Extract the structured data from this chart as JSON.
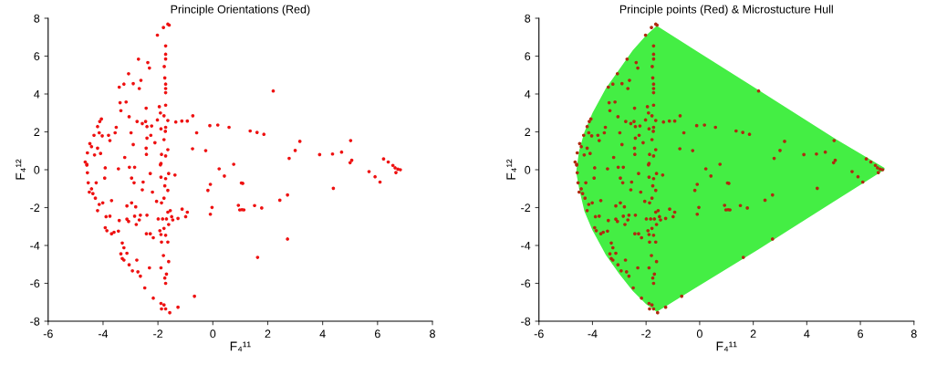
{
  "chart_data": [
    {
      "type": "scatter",
      "title": "Principle Orientations (Red)",
      "xlabel": "F₄¹¹",
      "ylabel": "F₄¹²",
      "xlim": [
        -6,
        8
      ],
      "ylim": [
        -8,
        8
      ],
      "xticks": [
        -6,
        -4,
        -2,
        0,
        2,
        4,
        6,
        8
      ],
      "yticks": [
        -8,
        -6,
        -4,
        -2,
        0,
        2,
        4,
        6,
        8
      ],
      "grid": false,
      "marker": "circle",
      "series": [
        {
          "color": "#ee1111",
          "x": [
            -1.64,
            -1.8,
            -2.02,
            -1.59,
            -1.72,
            -1.72,
            -1.72,
            -1.77,
            -2.71,
            -2.37,
            -2.31,
            -3.07,
            -2.9,
            -3.24,
            -2.62,
            -2.68,
            -3.41,
            -1.75,
            -1.72,
            -1.72,
            -1.72,
            -3.16,
            -3.38,
            -3.35,
            -2.43,
            -1.95,
            -1.72,
            -1.91,
            -3.05,
            -2.76,
            -2.45,
            -2.4,
            -2.57,
            -2.23,
            -2.02,
            -1.78,
            -1.64,
            -1.35,
            -1.13,
            -0.93,
            -0.73,
            -0.11,
            0.18,
            0.59,
            -1.89,
            -1.72,
            -1.73,
            -0.59,
            -0.26,
            -0.74,
            -2.4,
            -2.26,
            -2.11,
            -1.78,
            -2.43,
            -2.42,
            -2.9,
            -2.98,
            -4.12,
            -4.06,
            -4.2,
            -4.14,
            -4.33,
            -4.48,
            -4.42,
            -4.57,
            -4.65,
            -4.59,
            -4.03,
            -3.75,
            -3.8,
            -3.56,
            -3.52,
            -4.09,
            -4.31,
            -4.2,
            -3.21,
            -1.89,
            -1.87,
            -1.72,
            -1.64,
            -4.59,
            -4.57,
            -3.92,
            -3.94,
            -3.44,
            -3.04,
            -2.85,
            -2.96,
            -2.87,
            -2.54,
            -2.57,
            -2.28,
            -2.2,
            -1.91,
            -1.89,
            -1.72,
            -1.61,
            -1.38,
            -1.75,
            -1.64,
            -1.78,
            -2.05,
            -1.87,
            -4.54,
            -4.42,
            -4.37,
            -4.28,
            -4.14,
            -4.2,
            -4.01,
            -4.25,
            -4.5,
            -3.69,
            -3.89,
            -3.75,
            -3.92,
            -3.86,
            -3.69,
            -3.6,
            -3.44,
            -3.41,
            -3.13,
            -3.07,
            -3.13,
            -2.96,
            -2.81,
            -2.85,
            -2.79,
            -2.68,
            -2.64,
            -2.4,
            -2.42,
            -2.17,
            -2.28,
            -1.99,
            -1.83,
            -1.69,
            -1.93,
            -1.78,
            -1.72,
            -1.89,
            -1.87,
            -1.64,
            -1.64,
            -1.55,
            -1.5,
            -1.27,
            -1.12,
            -0.99,
            -0.93,
            -1.61,
            -1.46,
            -3.3,
            -3.24,
            -3.35,
            -3.3,
            -3.24,
            -3.13,
            -3.05,
            -2.93,
            -2.77,
            -2.73,
            -2.64,
            -2.48,
            -2.31,
            -1.89,
            -1.8,
            -1.61,
            -1.69,
            -1.75,
            -1.72,
            -2.17,
            -1.89,
            -1.78,
            -1.72,
            -1.87,
            -1.57,
            -1.27,
            -0.67,
            -0.09,
            -0.18,
            -0.03,
            -0.09,
            0.23,
            0.42,
            0.76,
            1.09,
            0.93,
            0.98,
            1.13,
            2.2,
            1.36,
            1.61,
            1.86,
            3.17,
            3.0,
            2.78,
            3.89,
            4.36,
            4.69,
            5.02,
            5.06,
            5.0,
            4.39,
            5.69,
            5.91,
            6.09,
            6.22,
            6.39,
            6.56,
            6.67,
            6.74,
            6.83,
            6.64,
            1.04,
            1.06,
            1.52,
            1.78,
            2.44,
            2.72,
            2.72,
            1.63
          ],
          "values": [
            7.69,
            7.51,
            7.11,
            7.64,
            6.54,
            6.1,
            5.85,
            5.45,
            5.84,
            5.66,
            5.37,
            5.07,
            4.55,
            4.52,
            4.72,
            4.29,
            4.36,
            4.85,
            4.52,
            4.29,
            4.07,
            3.58,
            3.54,
            3.12,
            3.25,
            3.33,
            3.41,
            3.0,
            2.8,
            2.55,
            2.55,
            2.28,
            2.44,
            2.31,
            2.63,
            2.85,
            2.6,
            2.52,
            2.57,
            2.57,
            2.85,
            2.33,
            2.36,
            2.24,
            2.16,
            2.24,
            2.03,
            1.95,
            1.01,
            1.11,
            1.67,
            1.82,
            1.43,
            1.59,
            1.14,
            0.81,
            1.33,
            1.95,
            2.55,
            2.68,
            2.28,
            1.95,
            1.82,
            1.38,
            1.22,
            0.89,
            0.41,
            0.24,
            1.79,
            1.54,
            1.82,
            1.95,
            2.24,
            0.86,
            0.78,
            1.14,
            0.65,
            0.33,
            0.81,
            0.73,
            1.06,
            0.29,
            -0.16,
            0.1,
            -0.44,
            0.05,
            0.13,
            0.13,
            -0.44,
            -0.69,
            -0.65,
            -1.06,
            -0.2,
            -1.18,
            0.26,
            -0.39,
            -0.47,
            -0.2,
            -0.28,
            -0.85,
            -1.09,
            -1.5,
            -1.67,
            -1.75,
            -0.69,
            -1.01,
            -1.26,
            -1.5,
            -1.83,
            -2.16,
            -1.75,
            -0.69,
            -1.18,
            -1.63,
            -2.48,
            -2.45,
            -3.06,
            -3.22,
            -3.38,
            -3.3,
            -3.24,
            -2.68,
            -2.61,
            -2.73,
            -1.91,
            -1.75,
            -1.96,
            -2.45,
            -2.89,
            -2.65,
            -2.4,
            -2.4,
            -3.38,
            -3.59,
            -3.38,
            -2.6,
            -2.6,
            -2.6,
            -3.22,
            -3.1,
            -3.46,
            -3.42,
            -3.82,
            -3.82,
            -2.24,
            -2.16,
            -2.48,
            -2.57,
            -2.08,
            -2.48,
            -2.24,
            -2.89,
            -2.65,
            -3.87,
            -4.12,
            -4.44,
            -4.69,
            -4.77,
            -4.41,
            -5.02,
            -5.34,
            -4.77,
            -5.39,
            -5.62,
            -6.24,
            -5.18,
            -5.18,
            -4.53,
            -4.85,
            -5.51,
            -5.72,
            -6.0,
            -6.78,
            -7.06,
            -7.14,
            -7.35,
            -7.35,
            -7.55,
            -7.26,
            -6.68,
            -0.77,
            -1.09,
            -1.99,
            -2.35,
            0.05,
            -0.33,
            0.29,
            -0.72,
            -1.88,
            -2.12,
            -2.12,
            4.16,
            2.05,
            1.97,
            1.87,
            1.5,
            1.02,
            0.6,
            0.8,
            0.83,
            0.93,
            1.54,
            0.5,
            0.37,
            -0.98,
            -0.1,
            -0.37,
            -0.65,
            0.57,
            0.41,
            0.23,
            -0.15,
            0.03,
            0.0,
            0.1,
            -0.7,
            -2.11,
            -1.89,
            -2.02,
            -1.61,
            -1.33,
            -3.66,
            -4.63
          ]
        }
      ]
    },
    {
      "type": "scatter",
      "title": "Principle points (Red) & Microstucture Hull",
      "xlabel": "F₄¹¹",
      "ylabel": "F₄¹²",
      "xlim": [
        -6,
        8
      ],
      "ylim": [
        -8,
        8
      ],
      "xticks": [
        -6,
        -4,
        -2,
        0,
        2,
        4,
        6,
        8
      ],
      "yticks": [
        -8,
        -6,
        -4,
        -2,
        0,
        2,
        4,
        6,
        8
      ],
      "grid": false,
      "series": [
        {
          "type": "area",
          "color": "#44ee44",
          "x": [
            -4.6,
            -4.5,
            -4.3,
            -4.0,
            -3.5,
            -3.0,
            -2.5,
            -2.0,
            -1.6,
            2.2,
            5.1,
            6.9
          ],
          "values": [
            0.0,
            1.0,
            2.0,
            3.0,
            4.3,
            5.3,
            6.3,
            7.1,
            7.6,
            4.2,
            1.6,
            0.1
          ]
        },
        {
          "type": "area",
          "color": "#44ee44",
          "x": [
            -4.6,
            -4.5,
            -4.3,
            -4.0,
            -3.5,
            -3.0,
            -2.5,
            -2.0,
            -1.6,
            2.2,
            5.1,
            6.9
          ],
          "values": [
            -0.2,
            -1.0,
            -2.2,
            -3.2,
            -4.5,
            -5.5,
            -6.4,
            -7.1,
            -7.5,
            -4.2,
            -1.6,
            0.0
          ]
        },
        {
          "marker": "circle",
          "color": "#b02a10",
          "x": [
            -1.64,
            -1.8,
            -2.02,
            -1.59,
            -1.72,
            -1.72,
            -1.72,
            -1.77,
            -2.71,
            -2.37,
            -2.31,
            -3.07,
            -2.9,
            -3.24,
            -2.62,
            -2.68,
            -3.41,
            -1.75,
            -1.72,
            -1.72,
            -1.72,
            -3.16,
            -3.38,
            -3.35,
            -2.43,
            -1.95,
            -1.72,
            -1.91,
            -3.05,
            -2.76,
            -2.45,
            -2.4,
            -2.57,
            -2.23,
            -2.02,
            -1.78,
            -1.64,
            -1.35,
            -1.13,
            -0.93,
            -0.73,
            -0.11,
            0.18,
            0.59,
            -1.89,
            -1.72,
            -1.73,
            -0.59,
            -0.26,
            -0.74,
            -2.4,
            -2.26,
            -2.11,
            -1.78,
            -2.43,
            -2.42,
            -2.9,
            -2.98,
            -4.12,
            -4.06,
            -4.2,
            -4.14,
            -4.33,
            -4.48,
            -4.42,
            -4.57,
            -4.65,
            -4.59,
            -4.03,
            -3.75,
            -3.8,
            -3.56,
            -3.52,
            -4.09,
            -4.31,
            -4.2,
            -3.21,
            -1.89,
            -1.87,
            -1.72,
            -1.64,
            -4.59,
            -4.57,
            -3.92,
            -3.94,
            -3.44,
            -3.04,
            -2.85,
            -2.96,
            -2.87,
            -2.54,
            -2.57,
            -2.28,
            -2.2,
            -1.91,
            -1.89,
            -1.72,
            -1.61,
            -1.38,
            -1.75,
            -1.64,
            -1.78,
            -2.05,
            -1.87,
            -4.54,
            -4.42,
            -4.37,
            -4.28,
            -4.14,
            -4.2,
            -4.01,
            -4.25,
            -4.5,
            -3.69,
            -3.89,
            -3.75,
            -3.92,
            -3.86,
            -3.69,
            -3.6,
            -3.44,
            -3.41,
            -3.13,
            -3.07,
            -3.13,
            -2.96,
            -2.81,
            -2.85,
            -2.79,
            -2.68,
            -2.64,
            -2.4,
            -2.42,
            -2.17,
            -2.28,
            -1.99,
            -1.83,
            -1.69,
            -1.93,
            -1.78,
            -1.72,
            -1.89,
            -1.87,
            -1.64,
            -1.64,
            -1.55,
            -1.5,
            -1.27,
            -1.12,
            -0.99,
            -0.93,
            -1.61,
            -1.46,
            -3.3,
            -3.24,
            -3.35,
            -3.3,
            -3.24,
            -3.13,
            -3.05,
            -2.93,
            -2.77,
            -2.73,
            -2.64,
            -2.48,
            -2.31,
            -1.89,
            -1.8,
            -1.61,
            -1.69,
            -1.75,
            -1.72,
            -2.17,
            -1.89,
            -1.78,
            -1.72,
            -1.87,
            -1.57,
            -1.27,
            -0.67,
            -0.09,
            -0.18,
            -0.03,
            -0.09,
            0.23,
            0.42,
            0.76,
            1.09,
            0.93,
            0.98,
            1.13,
            2.2,
            1.36,
            1.61,
            1.86,
            3.17,
            3.0,
            2.78,
            3.89,
            4.36,
            4.69,
            5.02,
            5.06,
            5.0,
            4.39,
            5.69,
            5.91,
            6.09,
            6.22,
            6.39,
            6.56,
            6.67,
            6.74,
            6.83,
            6.64,
            1.04,
            1.06,
            1.52,
            1.78,
            2.44,
            2.72,
            2.72,
            1.63
          ],
          "values": [
            7.69,
            7.51,
            7.11,
            7.64,
            6.54,
            6.1,
            5.85,
            5.45,
            5.84,
            5.66,
            5.37,
            5.07,
            4.55,
            4.52,
            4.72,
            4.29,
            4.36,
            4.85,
            4.52,
            4.29,
            4.07,
            3.58,
            3.54,
            3.12,
            3.25,
            3.33,
            3.41,
            3.0,
            2.8,
            2.55,
            2.55,
            2.28,
            2.44,
            2.31,
            2.63,
            2.85,
            2.6,
            2.52,
            2.57,
            2.57,
            2.85,
            2.33,
            2.36,
            2.24,
            2.16,
            2.24,
            2.03,
            1.95,
            1.01,
            1.11,
            1.67,
            1.82,
            1.43,
            1.59,
            1.14,
            0.81,
            1.33,
            1.95,
            2.55,
            2.68,
            2.28,
            1.95,
            1.82,
            1.38,
            1.22,
            0.89,
            0.41,
            0.24,
            1.79,
            1.54,
            1.82,
            1.95,
            2.24,
            0.86,
            0.78,
            1.14,
            0.65,
            0.33,
            0.81,
            0.73,
            1.06,
            0.29,
            -0.16,
            0.1,
            -0.44,
            0.05,
            0.13,
            0.13,
            -0.44,
            -0.69,
            -0.65,
            -1.06,
            -0.2,
            -1.18,
            0.26,
            -0.39,
            -0.47,
            -0.2,
            -0.28,
            -0.85,
            -1.09,
            -1.5,
            -1.67,
            -1.75,
            -0.69,
            -1.01,
            -1.26,
            -1.5,
            -1.83,
            -2.16,
            -1.75,
            -0.69,
            -1.18,
            -1.63,
            -2.48,
            -2.45,
            -3.06,
            -3.22,
            -3.38,
            -3.3,
            -3.24,
            -2.68,
            -2.61,
            -2.73,
            -1.91,
            -1.75,
            -1.96,
            -2.45,
            -2.89,
            -2.65,
            -2.4,
            -2.4,
            -3.38,
            -3.59,
            -3.38,
            -2.6,
            -2.6,
            -2.6,
            -3.22,
            -3.1,
            -3.46,
            -3.42,
            -3.82,
            -3.82,
            -2.24,
            -2.16,
            -2.48,
            -2.57,
            -2.08,
            -2.48,
            -2.24,
            -2.89,
            -2.65,
            -3.87,
            -4.12,
            -4.44,
            -4.69,
            -4.77,
            -4.41,
            -5.02,
            -5.34,
            -4.77,
            -5.39,
            -5.62,
            -6.24,
            -5.18,
            -5.18,
            -4.53,
            -4.85,
            -5.51,
            -5.72,
            -6.0,
            -6.78,
            -7.06,
            -7.14,
            -7.35,
            -7.35,
            -7.55,
            -7.26,
            -6.68,
            -0.77,
            -1.09,
            -1.99,
            -2.35,
            0.05,
            -0.33,
            0.29,
            -0.72,
            -1.88,
            -2.12,
            -2.12,
            4.16,
            2.05,
            1.97,
            1.87,
            1.5,
            1.02,
            0.6,
            0.8,
            0.83,
            0.93,
            1.54,
            0.5,
            0.37,
            -0.98,
            -0.1,
            -0.37,
            -0.65,
            0.57,
            0.41,
            0.23,
            -0.15,
            0.03,
            0.0,
            0.1,
            -0.7,
            -2.11,
            -1.89,
            -2.02,
            -1.61,
            -1.33,
            -3.66,
            -4.63
          ]
        }
      ]
    }
  ]
}
